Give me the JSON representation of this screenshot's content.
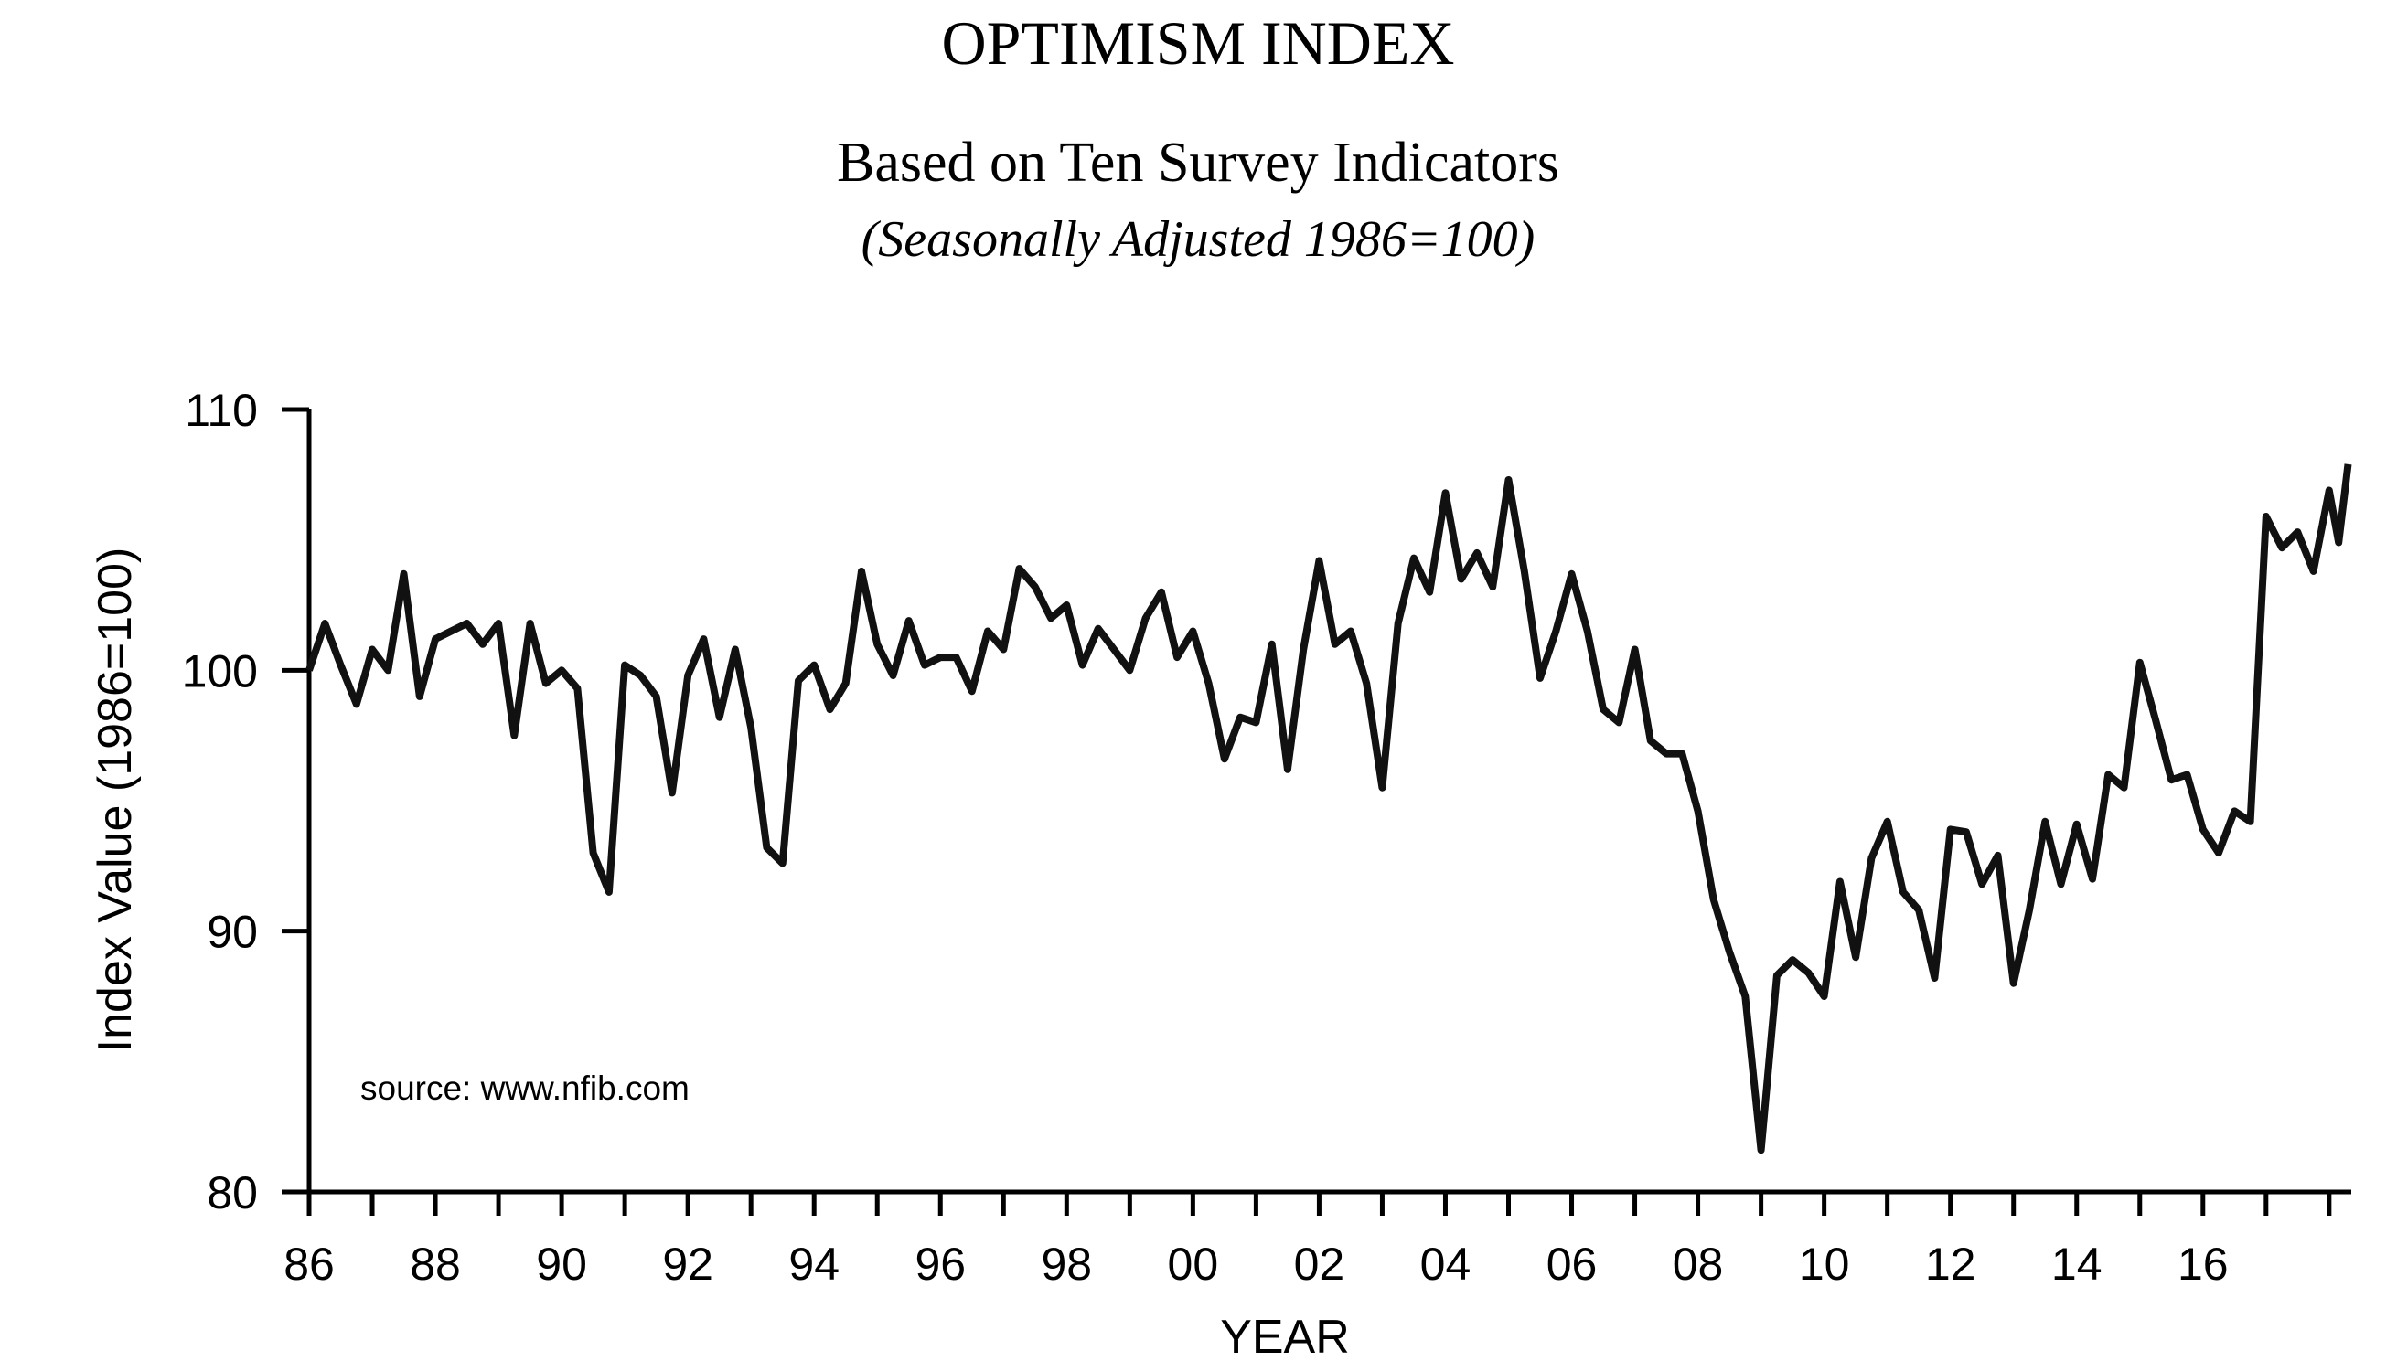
{
  "chart_data": {
    "type": "line",
    "title": "OPTIMISM INDEX",
    "subtitle": "Based on Ten Survey Indicators",
    "subtitle2": "(Seasonally Adjusted 1986=100)",
    "x_label": "YEAR",
    "y_label": "Index Value (1986=100)",
    "annotation": "source: www.nfib.com",
    "xlim": [
      1986,
      2018.35
    ],
    "ylim": [
      80,
      110
    ],
    "yticks": [
      80,
      90,
      100,
      110
    ],
    "xticks": [
      {
        "value": 1986,
        "label": "86"
      },
      {
        "value": 1988,
        "label": "88"
      },
      {
        "value": 1990,
        "label": "90"
      },
      {
        "value": 1992,
        "label": "92"
      },
      {
        "value": 1994,
        "label": "94"
      },
      {
        "value": 1996,
        "label": "96"
      },
      {
        "value": 1998,
        "label": "98"
      },
      {
        "value": 2000,
        "label": "00"
      },
      {
        "value": 2002,
        "label": "02"
      },
      {
        "value": 2004,
        "label": "04"
      },
      {
        "value": 2006,
        "label": "06"
      },
      {
        "value": 2008,
        "label": "08"
      },
      {
        "value": 2010,
        "label": "10"
      },
      {
        "value": 2012,
        "label": "12"
      },
      {
        "value": 2014,
        "label": "14"
      },
      {
        "value": 2016,
        "label": "16"
      }
    ],
    "xunlabeled_ticks": [
      1987,
      1989,
      1991,
      1993,
      1995,
      1997,
      1999,
      2001,
      2003,
      2005,
      2007,
      2009,
      2011,
      2013,
      2015,
      2017,
      2018
    ],
    "color": "#111111",
    "x": [
      1986.0,
      1986.25,
      1986.5,
      1986.75,
      1987.0,
      1987.25,
      1987.5,
      1987.75,
      1988.0,
      1988.25,
      1988.5,
      1988.75,
      1989.0,
      1989.25,
      1989.5,
      1989.75,
      1990.0,
      1990.25,
      1990.5,
      1990.75,
      1991.0,
      1991.25,
      1991.5,
      1991.75,
      1992.0,
      1992.25,
      1992.5,
      1992.75,
      1993.0,
      1993.25,
      1993.5,
      1993.75,
      1994.0,
      1994.25,
      1994.5,
      1994.75,
      1995.0,
      1995.25,
      1995.5,
      1995.75,
      1996.0,
      1996.25,
      1996.5,
      1996.75,
      1997.0,
      1997.25,
      1997.5,
      1997.75,
      1998.0,
      1998.25,
      1998.5,
      1998.75,
      1999.0,
      1999.25,
      1999.5,
      1999.75,
      2000.0,
      2000.25,
      2000.5,
      2000.75,
      2001.0,
      2001.25,
      2001.5,
      2001.75,
      2002.0,
      2002.25,
      2002.5,
      2002.75,
      2003.0,
      2003.25,
      2003.5,
      2003.75,
      2004.0,
      2004.25,
      2004.5,
      2004.75,
      2005.0,
      2005.25,
      2005.5,
      2005.75,
      2006.0,
      2006.25,
      2006.5,
      2006.75,
      2007.0,
      2007.25,
      2007.5,
      2007.75,
      2008.0,
      2008.25,
      2008.5,
      2008.75,
      2009.0,
      2009.25,
      2009.5,
      2009.75,
      2010.0,
      2010.25,
      2010.5,
      2010.75,
      2011.0,
      2011.25,
      2011.5,
      2011.75,
      2012.0,
      2012.25,
      2012.5,
      2012.75,
      2013.0,
      2013.25,
      2013.5,
      2013.75,
      2014.0,
      2014.25,
      2014.5,
      2014.75,
      2015.0,
      2015.25,
      2015.5,
      2015.75,
      2016.0,
      2016.25,
      2016.5,
      2016.75,
      2017.0,
      2017.25,
      2017.5,
      2017.75,
      2018.0,
      2018.15,
      2018.3
    ],
    "values": [
      100.0,
      101.8,
      100.2,
      98.7,
      100.8,
      100.0,
      103.7,
      99.0,
      101.2,
      101.5,
      101.8,
      101.0,
      101.8,
      97.5,
      101.8,
      99.5,
      100.0,
      99.3,
      93.0,
      91.5,
      100.2,
      99.8,
      99.0,
      95.3,
      99.8,
      101.2,
      98.2,
      100.8,
      97.8,
      93.2,
      92.6,
      99.6,
      100.2,
      98.5,
      99.5,
      103.8,
      101.0,
      99.8,
      101.9,
      100.2,
      100.5,
      100.5,
      99.2,
      101.5,
      100.8,
      103.9,
      103.2,
      102.0,
      102.5,
      100.2,
      101.6,
      100.8,
      100.0,
      102.0,
      103.0,
      100.5,
      101.5,
      99.5,
      96.6,
      98.2,
      98.0,
      101.0,
      96.2,
      100.8,
      104.2,
      101.0,
      101.5,
      99.5,
      95.5,
      101.8,
      104.3,
      103.0,
      106.8,
      103.5,
      104.5,
      103.2,
      107.3,
      103.8,
      99.7,
      101.5,
      103.7,
      101.5,
      98.5,
      98.0,
      100.8,
      97.3,
      96.8,
      96.8,
      94.6,
      91.2,
      89.2,
      87.5,
      81.6,
      88.3,
      88.9,
      88.4,
      87.5,
      91.9,
      89.0,
      92.8,
      94.2,
      91.5,
      90.8,
      88.2,
      93.9,
      93.8,
      91.8,
      92.9,
      88.0,
      90.8,
      94.2,
      91.8,
      94.1,
      92.0,
      96.0,
      95.5,
      100.3,
      98.1,
      95.8,
      96.0,
      93.9,
      93.0,
      94.6,
      94.2,
      105.9,
      104.7,
      105.3,
      103.8,
      106.9,
      104.9,
      107.9
    ]
  }
}
